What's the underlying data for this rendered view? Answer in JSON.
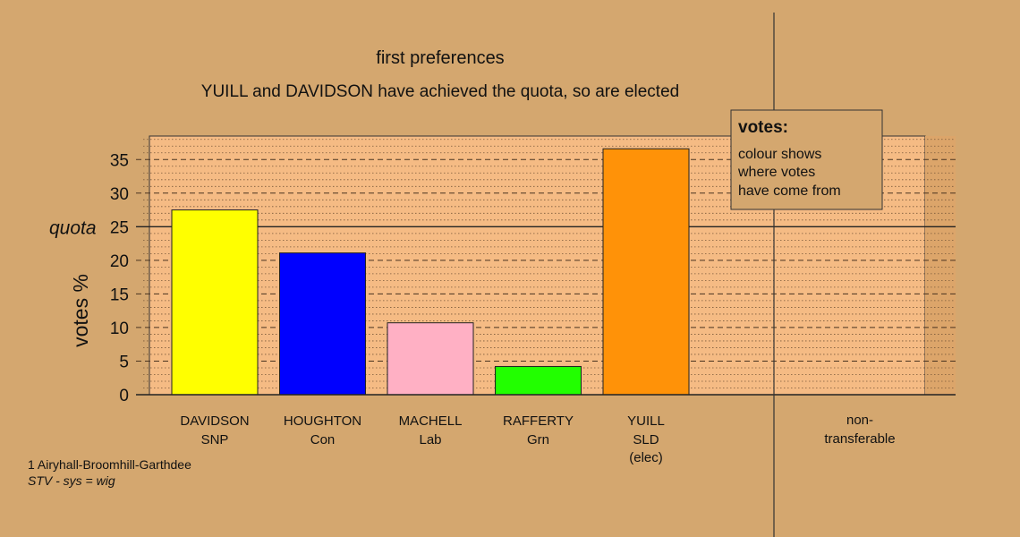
{
  "chart_data": {
    "type": "bar",
    "title": "first preferences",
    "subtitle": "YUILL and DAVIDSON have achieved the quota, so are elected",
    "ylabel": "votes %",
    "quota_label": "quota",
    "quota_value": 25,
    "ylim": [
      0,
      38.5
    ],
    "yticks": [
      0,
      5,
      10,
      15,
      20,
      25,
      30,
      35
    ],
    "categories": [
      {
        "name": "DAVIDSON",
        "party": "SNP",
        "note": ""
      },
      {
        "name": "HOUGHTON",
        "party": "Con",
        "note": ""
      },
      {
        "name": "MACHELL",
        "party": "Lab",
        "note": ""
      },
      {
        "name": "RAFFERTY",
        "party": "Grn",
        "note": ""
      },
      {
        "name": "YUILL",
        "party": "SLD",
        "note": "(elec)"
      }
    ],
    "values": [
      27.5,
      21.1,
      10.7,
      4.2,
      36.6
    ],
    "colors": [
      "#ffff00",
      "#0000ff",
      "#ffb0c4",
      "#22ff00",
      "#ff9208"
    ],
    "nontransferable": {
      "line1": "non-",
      "line2": "transferable",
      "value": 0
    },
    "legend": {
      "heading": "votes:",
      "lines": [
        "colour shows",
        "where votes",
        "have come from"
      ],
      "placement": "top-right"
    },
    "footer": {
      "line1": "1 Airyhall-Broomhill-Garthdee",
      "line2": "STV - sys = wig"
    }
  }
}
